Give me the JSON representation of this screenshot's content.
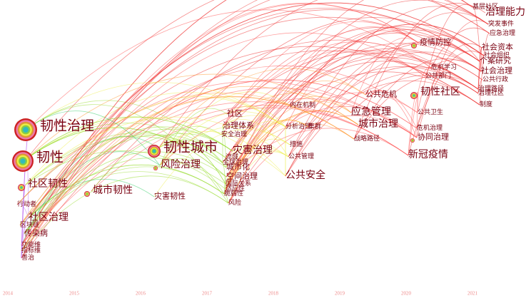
{
  "axis": {
    "years": [
      2014,
      2015,
      2016,
      2017,
      2018,
      2019,
      2020,
      2021
    ]
  },
  "nodes": [
    {
      "label": "韧性治理"
    },
    {
      "label": "韧性"
    },
    {
      "label": "社区韧性"
    },
    {
      "label": "行动者"
    },
    {
      "label": "社区治理"
    },
    {
      "label": "区块链"
    },
    {
      "label": "传染病"
    },
    {
      "label": "功能维"
    },
    {
      "label": "指标维"
    },
    {
      "label": "善治"
    },
    {
      "label": "城市韧性"
    },
    {
      "label": "灾害韧性"
    },
    {
      "label": "韧性城市"
    },
    {
      "label": "风险治理"
    },
    {
      "label": "社区"
    },
    {
      "label": "治理体系"
    },
    {
      "label": "安全治理"
    },
    {
      "label": "灾害治理"
    },
    {
      "label": "流域"
    },
    {
      "label": "全球治理"
    },
    {
      "label": "城市化"
    },
    {
      "label": "空间治理"
    },
    {
      "label": "国际关系"
    },
    {
      "label": "适应性"
    },
    {
      "label": "脆弱性"
    },
    {
      "label": "风险"
    },
    {
      "label": "内在机制"
    },
    {
      "label": "分析治理"
    },
    {
      "label": "集群"
    },
    {
      "label": "措施"
    },
    {
      "label": "公共管理"
    },
    {
      "label": "公共安全"
    },
    {
      "label": "应急管理"
    },
    {
      "label": "城市治理"
    },
    {
      "label": "战略路径"
    },
    {
      "label": "公共危机"
    },
    {
      "label": "新冠疫情"
    },
    {
      "label": "疫情防控"
    },
    {
      "label": "韧性社区"
    },
    {
      "label": "公共卫生"
    },
    {
      "label": "危机治理"
    },
    {
      "label": "协同治理"
    },
    {
      "label": "危机学习"
    },
    {
      "label": "公共部门"
    },
    {
      "label": "基层社区"
    },
    {
      "label": "治理能力"
    },
    {
      "label": "突发事件"
    },
    {
      "label": "应急治理"
    },
    {
      "label": "社会资本"
    },
    {
      "label": "社会组织"
    },
    {
      "label": "个案研究"
    },
    {
      "label": "社会治理"
    },
    {
      "label": "公共行政"
    },
    {
      "label": "治理路径"
    },
    {
      "label": "治理社区"
    },
    {
      "label": "制度"
    }
  ]
}
